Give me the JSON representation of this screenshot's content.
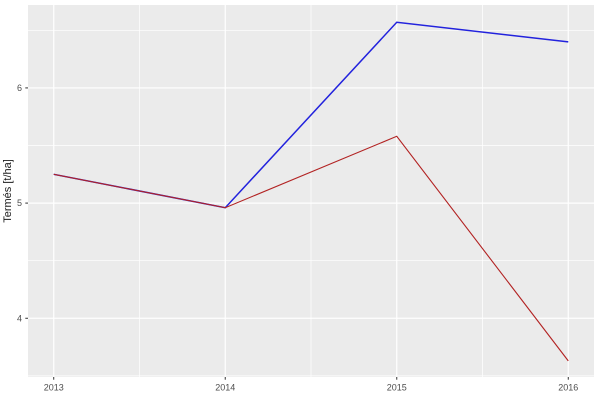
{
  "chart_data": {
    "type": "line",
    "title": "",
    "xlabel": "",
    "ylabel": "Termés [t/ha]",
    "x": [
      2013,
      2014,
      2015,
      2016
    ],
    "series": [
      {
        "name": "blue-series",
        "color": "#2222DD",
        "values": [
          5.25,
          4.96,
          6.57,
          6.4
        ]
      },
      {
        "name": "red-series",
        "color": "#B22222",
        "values": [
          5.25,
          4.96,
          5.58,
          3.63
        ]
      }
    ],
    "xlim": [
      2012.85,
      2016.15
    ],
    "ylim": [
      3.49,
      6.72
    ],
    "x_ticks": [
      2013,
      2014,
      2015,
      2016
    ],
    "x_tick_labels": [
      "2013",
      "2014",
      "2015",
      "2016"
    ],
    "y_ticks": [
      4,
      5,
      6
    ],
    "y_tick_labels": [
      "4",
      "5",
      "6"
    ],
    "x_minor_gridlines": [
      2013.5,
      2014.5,
      2015.5
    ],
    "y_minor_gridlines": [
      3.5,
      4.5,
      5.5,
      6.5
    ],
    "grid": true,
    "legend": "none",
    "colors": {
      "panel_background": "#EBEBEB",
      "gridline": "#FFFFFF",
      "tick_mark": "#333333",
      "tick_label": "#4D4D4D",
      "axis_title": "#1a1a1a",
      "figure_background": "#FFFFFF"
    }
  }
}
